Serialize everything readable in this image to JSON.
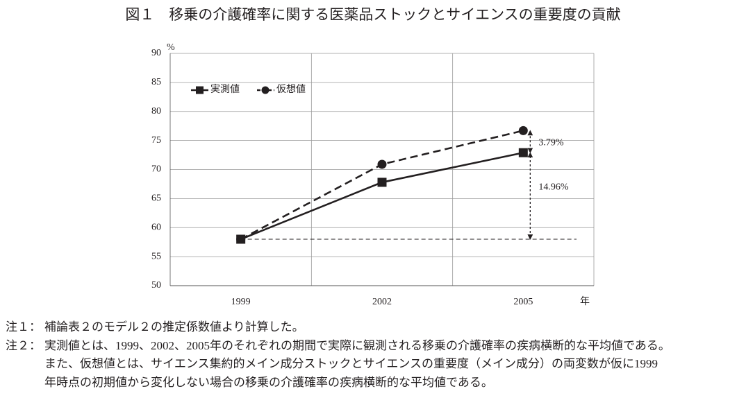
{
  "chart_data": {
    "type": "line",
    "title": "図１　移乗の介護確率に関する医薬品ストックとサイエンスの重要度の貢献",
    "y_unit": "%",
    "x_unit": "年",
    "categories": [
      "1999",
      "2002",
      "2005"
    ],
    "series": [
      {
        "name": "実測値",
        "color": "#231f20",
        "values": [
          58,
          67.8,
          72.9
        ],
        "marker": "square",
        "line_style": "solid"
      },
      {
        "name": "仮想値",
        "color": "#231f20",
        "values": [
          58,
          70.9,
          76.7
        ],
        "marker": "circle",
        "line_style": "dashed"
      }
    ],
    "ylim": [
      50,
      90
    ],
    "yticks": [
      50,
      55,
      60,
      65,
      70,
      75,
      80,
      85,
      90
    ],
    "grid": true,
    "legend_position": "upper left",
    "annotations": [
      "3.79%",
      "14.96%"
    ]
  },
  "notes": [
    {
      "label": "注１：",
      "lines": [
        "補論表２のモデル２の推定係数値より計算した。"
      ]
    },
    {
      "label": "注２：",
      "lines": [
        "実測値とは、1999、2002、2005年のそれぞれの期間で実際に観測される移乗の介護確率の疾病横断的な平均値である。",
        "また、仮想値とは、サイエンス集約的メイン成分ストックとサイエンスの重要度（メイン成分）の両変数が仮に1999",
        "年時点の初期値から変化しない場合の移乗の介護確率の疾病横断的な平均値である。"
      ]
    }
  ]
}
